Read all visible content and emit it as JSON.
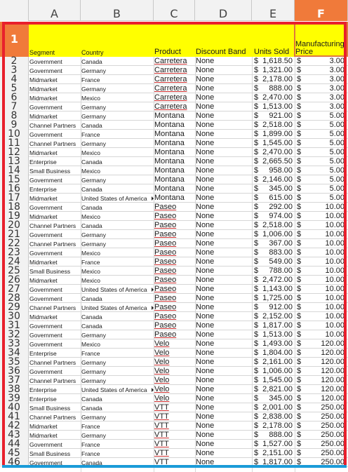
{
  "columns": [
    "A",
    "B",
    "C",
    "D",
    "E",
    "F"
  ],
  "selected_column": "F",
  "header_row": {
    "row_number": "1",
    "segment": "Segment",
    "country": "Country",
    "product": "Product",
    "discount_band": "Discount Band",
    "units_sold": "Units Sold",
    "manufacturing_price": "Manufacturing Price"
  },
  "currency_symbol": "$",
  "rows": [
    {
      "n": "2",
      "segment": "Government",
      "country": "Canada",
      "product": "Carretera",
      "discount": "None",
      "units": "1,618.50",
      "price": "3.00"
    },
    {
      "n": "3",
      "segment": "Government",
      "country": "Germany",
      "product": "Carretera",
      "discount": "None",
      "units": "1,321.00",
      "price": "3.00"
    },
    {
      "n": "4",
      "segment": "Midmarket",
      "country": "France",
      "product": "Carretera",
      "discount": "None",
      "units": "2,178.00",
      "price": "3.00"
    },
    {
      "n": "5",
      "segment": "Midmarket",
      "country": "Germany",
      "product": "Carretera",
      "discount": "None",
      "units": "888.00",
      "price": "3.00"
    },
    {
      "n": "6",
      "segment": "Midmarket",
      "country": "Mexico",
      "product": "Carretera",
      "discount": "None",
      "units": "2,470.00",
      "price": "3.00"
    },
    {
      "n": "7",
      "segment": "Government",
      "country": "Germany",
      "product": "Carretera",
      "discount": "None",
      "units": "1,513.00",
      "price": "3.00"
    },
    {
      "n": "8",
      "segment": "Midmarket",
      "country": "Germany",
      "product": "Montana",
      "discount": "None",
      "units": "921.00",
      "price": "5.00"
    },
    {
      "n": "9",
      "segment": "Channel Partners",
      "country": "Canada",
      "product": "Montana",
      "discount": "None",
      "units": "2,518.00",
      "price": "5.00"
    },
    {
      "n": "10",
      "segment": "Government",
      "country": "France",
      "product": "Montana",
      "discount": "None",
      "units": "1,899.00",
      "price": "5.00"
    },
    {
      "n": "11",
      "segment": "Channel Partners",
      "country": "Germany",
      "product": "Montana",
      "discount": "None",
      "units": "1,545.00",
      "price": "5.00"
    },
    {
      "n": "12",
      "segment": "Midmarket",
      "country": "Mexico",
      "product": "Montana",
      "discount": "None",
      "units": "2,470.00",
      "price": "5.00"
    },
    {
      "n": "13",
      "segment": "Enterprise",
      "country": "Canada",
      "product": "Montana",
      "discount": "None",
      "units": "2,665.50",
      "price": "5.00"
    },
    {
      "n": "14",
      "segment": "Small Business",
      "country": "Mexico",
      "product": "Montana",
      "discount": "None",
      "units": "958.00",
      "price": "5.00"
    },
    {
      "n": "15",
      "segment": "Government",
      "country": "Germany",
      "product": "Montana",
      "discount": "None",
      "units": "2,146.00",
      "price": "5.00"
    },
    {
      "n": "16",
      "segment": "Enterprise",
      "country": "Canada",
      "product": "Montana",
      "discount": "None",
      "units": "345.00",
      "price": "5.00"
    },
    {
      "n": "17",
      "segment": "Midmarket",
      "country": "United States of America",
      "product": "Montana",
      "discount": "None",
      "units": "615.00",
      "price": "5.00"
    },
    {
      "n": "18",
      "segment": "Government",
      "country": "Canada",
      "product": "Paseo",
      "discount": "None",
      "units": "292.00",
      "price": "10.00"
    },
    {
      "n": "19",
      "segment": "Midmarket",
      "country": "Mexico",
      "product": "Paseo",
      "discount": "None",
      "units": "974.00",
      "price": "10.00"
    },
    {
      "n": "20",
      "segment": "Channel Partners",
      "country": "Canada",
      "product": "Paseo",
      "discount": "None",
      "units": "2,518.00",
      "price": "10.00"
    },
    {
      "n": "21",
      "segment": "Government",
      "country": "Germany",
      "product": "Paseo",
      "discount": "None",
      "units": "1,006.00",
      "price": "10.00"
    },
    {
      "n": "22",
      "segment": "Channel Partners",
      "country": "Germany",
      "product": "Paseo",
      "discount": "None",
      "units": "367.00",
      "price": "10.00"
    },
    {
      "n": "23",
      "segment": "Government",
      "country": "Mexico",
      "product": "Paseo",
      "discount": "None",
      "units": "883.00",
      "price": "10.00"
    },
    {
      "n": "24",
      "segment": "Midmarket",
      "country": "France",
      "product": "Paseo",
      "discount": "None",
      "units": "549.00",
      "price": "10.00"
    },
    {
      "n": "25",
      "segment": "Small Business",
      "country": "Mexico",
      "product": "Paseo",
      "discount": "None",
      "units": "788.00",
      "price": "10.00"
    },
    {
      "n": "26",
      "segment": "Midmarket",
      "country": "Mexico",
      "product": "Paseo",
      "discount": "None",
      "units": "2,472.00",
      "price": "10.00"
    },
    {
      "n": "27",
      "segment": "Government",
      "country": "United States of America",
      "product": "Paseo",
      "discount": "None",
      "units": "1,143.00",
      "price": "10.00"
    },
    {
      "n": "28",
      "segment": "Government",
      "country": "Canada",
      "product": "Paseo",
      "discount": "None",
      "units": "1,725.00",
      "price": "10.00"
    },
    {
      "n": "29",
      "segment": "Channel Partners",
      "country": "United States of America",
      "product": "Paseo",
      "discount": "None",
      "units": "912.00",
      "price": "10.00"
    },
    {
      "n": "30",
      "segment": "Midmarket",
      "country": "Canada",
      "product": "Paseo",
      "discount": "None",
      "units": "2,152.00",
      "price": "10.00"
    },
    {
      "n": "31",
      "segment": "Government",
      "country": "Canada",
      "product": "Paseo",
      "discount": "None",
      "units": "1,817.00",
      "price": "10.00"
    },
    {
      "n": "32",
      "segment": "Government",
      "country": "Germany",
      "product": "Paseo",
      "discount": "None",
      "units": "1,513.00",
      "price": "10.00"
    },
    {
      "n": "33",
      "segment": "Government",
      "country": "Mexico",
      "product": "Velo",
      "discount": "None",
      "units": "1,493.00",
      "price": "120.00"
    },
    {
      "n": "34",
      "segment": "Enterprise",
      "country": "France",
      "product": "Velo",
      "discount": "None",
      "units": "1,804.00",
      "price": "120.00"
    },
    {
      "n": "35",
      "segment": "Channel Partners",
      "country": "Germany",
      "product": "Velo",
      "discount": "None",
      "units": "2,161.00",
      "price": "120.00"
    },
    {
      "n": "36",
      "segment": "Government",
      "country": "Germany",
      "product": "Velo",
      "discount": "None",
      "units": "1,006.00",
      "price": "120.00"
    },
    {
      "n": "37",
      "segment": "Channel Partners",
      "country": "Germany",
      "product": "Velo",
      "discount": "None",
      "units": "1,545.00",
      "price": "120.00"
    },
    {
      "n": "38",
      "segment": "Enterprise",
      "country": "United States of America",
      "product": "Velo",
      "discount": "None",
      "units": "2,821.00",
      "price": "120.00"
    },
    {
      "n": "39",
      "segment": "Enterprise",
      "country": "Canada",
      "product": "Velo",
      "discount": "None",
      "units": "345.00",
      "price": "120.00"
    },
    {
      "n": "40",
      "segment": "Small Business",
      "country": "Canada",
      "product": "VTT",
      "discount": "None",
      "units": "2,001.00",
      "price": "250.00"
    },
    {
      "n": "41",
      "segment": "Channel Partners",
      "country": "Germany",
      "product": "VTT",
      "discount": "None",
      "units": "2,838.00",
      "price": "250.00"
    },
    {
      "n": "42",
      "segment": "Midmarket",
      "country": "France",
      "product": "VTT",
      "discount": "None",
      "units": "2,178.00",
      "price": "250.00"
    },
    {
      "n": "43",
      "segment": "Midmarket",
      "country": "Germany",
      "product": "VTT",
      "discount": "None",
      "units": "888.00",
      "price": "250.00"
    },
    {
      "n": "44",
      "segment": "Government",
      "country": "France",
      "product": "VTT",
      "discount": "None",
      "units": "1,527.00",
      "price": "250.00"
    },
    {
      "n": "45",
      "segment": "Small Business",
      "country": "France",
      "product": "VTT",
      "discount": "None",
      "units": "2,151.00",
      "price": "250.00"
    },
    {
      "n": "46",
      "segment": "Government",
      "country": "Canada",
      "product": "VTT",
      "discount": "None",
      "units": "1,817.00",
      "price": "250.00"
    }
  ]
}
